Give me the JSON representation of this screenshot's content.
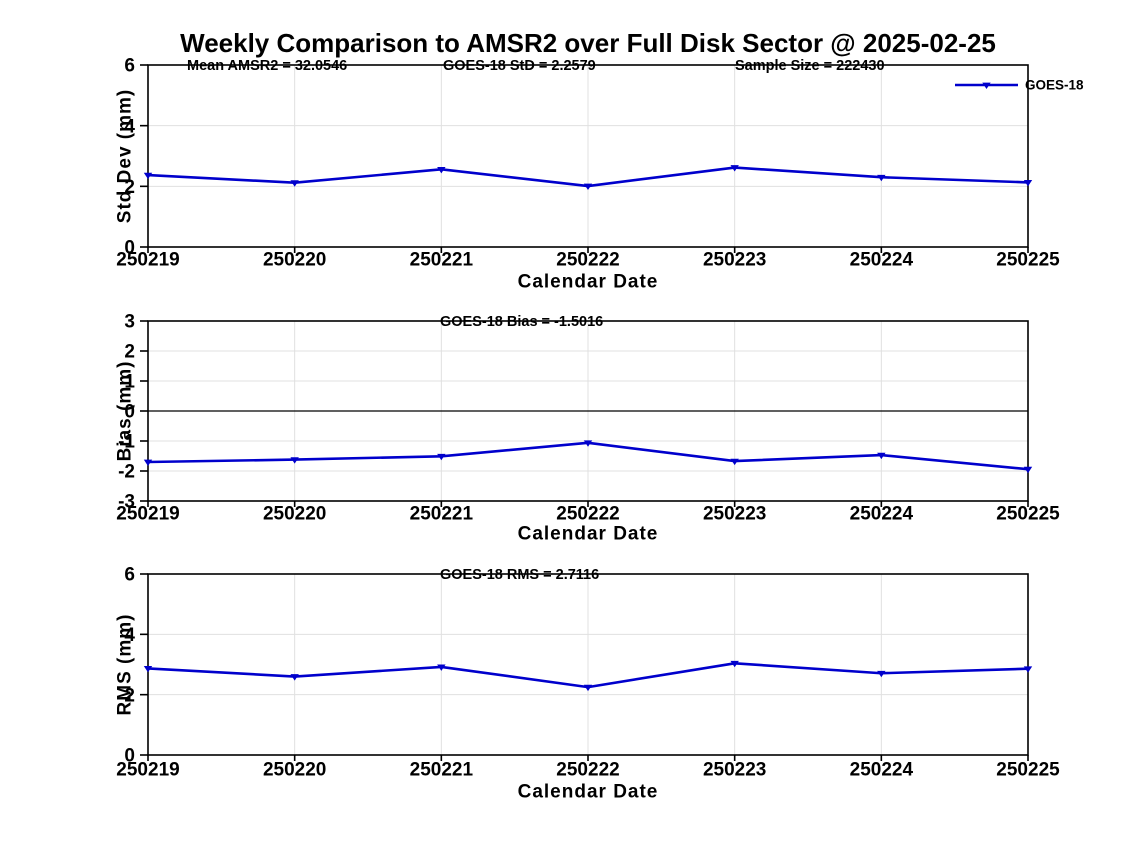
{
  "title": "Weekly Comparison to AMSR2 over Full Disk Sector @ 2025-02-25",
  "legend": {
    "label": "GOES-18",
    "position": "top-right"
  },
  "colors": {
    "line": "#0000cc",
    "grid": "#e0e0e0",
    "axis": "#000000",
    "background": "#ffffff"
  },
  "chart_data": [
    {
      "type": "line",
      "panel": "std_dev",
      "annotations": [
        "Mean AMSR2 = 32.0546",
        "GOES-18 StD = 2.2579",
        "Sample Size = 222430"
      ],
      "ylabel": "Std Dev (mm)",
      "xlabel": "Calendar Date",
      "categories": [
        "250219",
        "250220",
        "250221",
        "250222",
        "250223",
        "250224",
        "250225"
      ],
      "series": [
        {
          "name": "GOES-18",
          "values": [
            2.37,
            2.12,
            2.56,
            2.01,
            2.62,
            2.3,
            2.13
          ]
        }
      ],
      "ylim": [
        0,
        6
      ],
      "yticks": [
        0,
        2,
        4,
        6
      ],
      "grid": true,
      "legend_position": "top-right"
    },
    {
      "type": "line",
      "panel": "bias",
      "annotations": [
        "GOES-18 Bias  = -1.5016"
      ],
      "ylabel": "Bias (mm)",
      "xlabel": "Calendar Date",
      "categories": [
        "250219",
        "250220",
        "250221",
        "250222",
        "250223",
        "250224",
        "250225"
      ],
      "series": [
        {
          "name": "GOES-18",
          "values": [
            -1.7,
            -1.62,
            -1.51,
            -1.06,
            -1.67,
            -1.47,
            -1.94
          ]
        }
      ],
      "ylim": [
        -3,
        3
      ],
      "yticks": [
        -3,
        -2,
        -1,
        0,
        1,
        2,
        3
      ],
      "zero_line": true,
      "grid": true
    },
    {
      "type": "line",
      "panel": "rms",
      "annotations": [
        "GOES-18 RMS = 2.7116"
      ],
      "ylabel": "RMS (mm)",
      "xlabel": "Calendar Date",
      "categories": [
        "250219",
        "250220",
        "250221",
        "250222",
        "250223",
        "250224",
        "250225"
      ],
      "series": [
        {
          "name": "GOES-18",
          "values": [
            2.87,
            2.6,
            2.92,
            2.25,
            3.04,
            2.71,
            2.86
          ]
        }
      ],
      "ylim": [
        0,
        6
      ],
      "yticks": [
        0,
        2,
        4,
        6
      ],
      "grid": true
    }
  ]
}
